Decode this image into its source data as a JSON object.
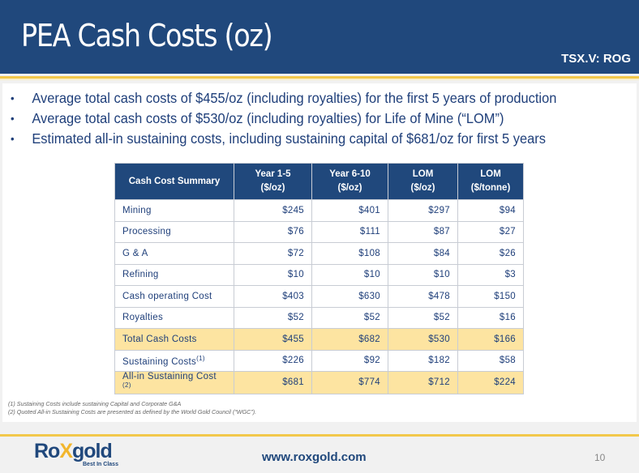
{
  "header": {
    "title": "PEA Cash Costs (oz)",
    "ticker": "TSX.V: ROG"
  },
  "bullets": [
    "Average total cash costs of $455/oz (including royalties) for the first 5 years of production",
    "Average  total cash costs of $530/oz  (including royalties) for Life of Mine (“LOM”)",
    "Estimated all-in sustaining costs, including sustaining capital of $681/oz for first 5 years"
  ],
  "table": {
    "headers": [
      {
        "line1": "Cash Cost Summary",
        "line2": ""
      },
      {
        "line1": "Year 1-5",
        "line2": "($/oz)"
      },
      {
        "line1": "Year 6-10",
        "line2": "($/oz)"
      },
      {
        "line1": "LOM",
        "line2": "($/oz)"
      },
      {
        "line1": "LOM",
        "line2": "($/tonne)"
      }
    ],
    "rows": [
      {
        "label": "Mining",
        "sup": "",
        "values": [
          "$245",
          "$401",
          "$297",
          "$94"
        ]
      },
      {
        "label": "Processing",
        "sup": "",
        "values": [
          "$76",
          "$111",
          "$87",
          "$27"
        ]
      },
      {
        "label": "G & A",
        "sup": "",
        "values": [
          "$72",
          "$108",
          "$84",
          "$26"
        ]
      },
      {
        "label": "Refining",
        "sup": "",
        "values": [
          "$10",
          "$10",
          "$10",
          "$3"
        ]
      },
      {
        "label": "Cash operating Cost",
        "sup": "",
        "values": [
          "$403",
          "$630",
          "$478",
          "$150"
        ]
      },
      {
        "label": "Royalties",
        "sup": "",
        "values": [
          "$52",
          "$52",
          "$52",
          "$16"
        ]
      },
      {
        "label": "Total Cash Costs",
        "sup": "",
        "values": [
          "$455",
          "$682",
          "$530",
          "$166"
        ]
      },
      {
        "label": "Sustaining Costs",
        "sup": "(1)",
        "values": [
          "$226",
          "$92",
          "$182",
          "$58"
        ]
      },
      {
        "label": "All-in Sustaining Cost ",
        "sup": "(2)",
        "values": [
          "$681",
          "$774",
          "$712",
          "$224"
        ]
      }
    ]
  },
  "footnotes": [
    "(1) Sustaining Costs include sustaining Capital and Corporate G&A",
    "(2) Quoted All-in Sustaining Costs are presented as defined by the World Gold Council (“WGC”)."
  ],
  "footer": {
    "logo_text_1": "Ro",
    "logo_text_x": "X",
    "logo_text_2": "gold",
    "logo_tagline": "Best In Class",
    "website": "www.roxgold.com",
    "page_number": "10"
  },
  "colors": {
    "brand_blue": "#20487c",
    "gold": "#f2c84b",
    "highlight": "#fde4a1"
  }
}
